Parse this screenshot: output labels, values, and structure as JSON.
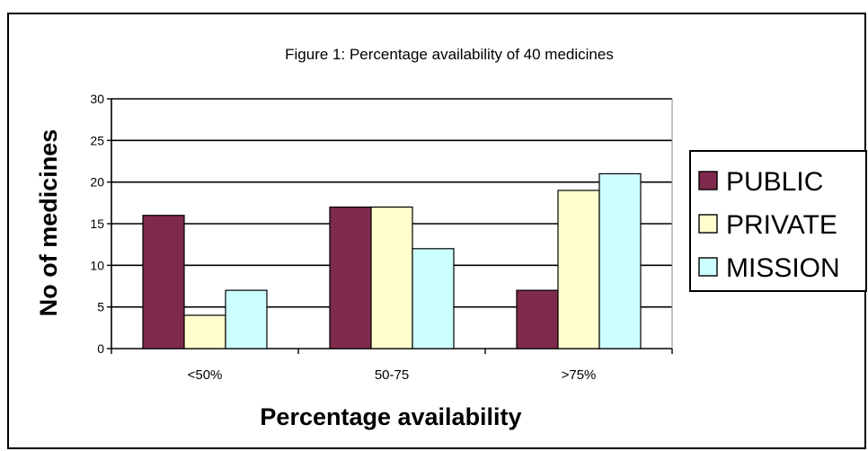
{
  "chart_data": {
    "type": "bar",
    "title": "Figure 1: Percentage availability of 40 medicines",
    "xlabel": "Percentage availability",
    "ylabel": "No of medicines",
    "categories": [
      "<50%",
      "50-75",
      ">75%"
    ],
    "series": [
      {
        "name": "PUBLIC",
        "values": [
          16,
          17,
          7
        ],
        "color": "#7f2a4c"
      },
      {
        "name": "PRIVATE",
        "values": [
          4,
          17,
          19
        ],
        "color": "#ffffcc"
      },
      {
        "name": "MISSION",
        "values": [
          7,
          12,
          21
        ],
        "color": "#ccffff"
      }
    ],
    "ylim": [
      0,
      30
    ],
    "yticks": [
      "0",
      "5",
      "10",
      "15",
      "20",
      "25",
      "30"
    ],
    "grid": true,
    "legend": "right"
  }
}
